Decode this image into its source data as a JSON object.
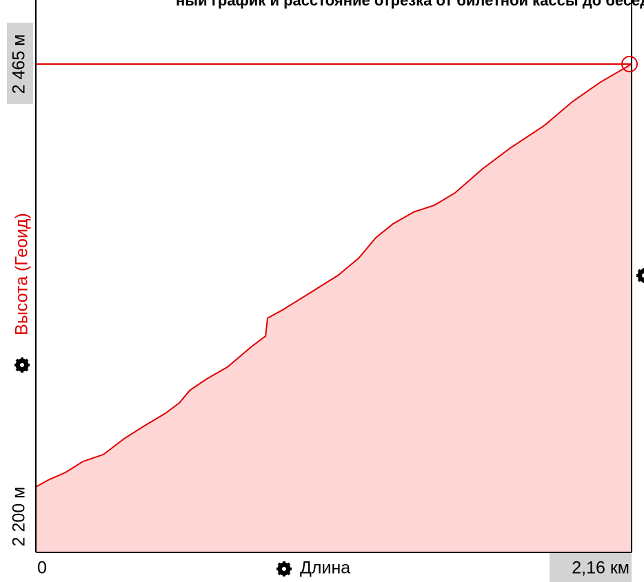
{
  "chart_data": {
    "type": "area",
    "title": "ный график и расстояние отрезка от билетной кассы до беседки.",
    "y_label": "Высота (Геоид)",
    "x_label": "Длина",
    "color": "#e00000",
    "fill": "#ffd6d6",
    "x": [
      0,
      0.045,
      0.108,
      0.17,
      0.245,
      0.32,
      0.395,
      0.47,
      0.52,
      0.558,
      0.62,
      0.695,
      0.783,
      0.833,
      0.84,
      0.895,
      0.995,
      1.095,
      1.17,
      1.233,
      1.295,
      1.37,
      1.445,
      1.52,
      1.62,
      1.72,
      1.845,
      1.945,
      2.045,
      2.16
    ],
    "values": [
      2235.5,
      2239.3,
      2243.4,
      2249.3,
      2253.1,
      2261.7,
      2268.8,
      2275.5,
      2281.1,
      2287.9,
      2294.2,
      2300.6,
      2311.8,
      2317.4,
      2327.1,
      2331.6,
      2340.9,
      2350.3,
      2359.6,
      2370.8,
      2378.3,
      2384.7,
      2388.4,
      2395.1,
      2408.2,
      2419.4,
      2431.8,
      2444.5,
      2455.0,
      2465.0
    ],
    "xlim": [
      0,
      2.16
    ],
    "xticks": [
      0,
      {
        "value": 2.16,
        "label": "2,16 км"
      }
    ],
    "ylim": [
      2200,
      2465
    ],
    "yticks": [
      {
        "value": 2200,
        "label": "2 200 м"
      },
      {
        "value": 2465,
        "label": "2 465 м"
      }
    ]
  }
}
